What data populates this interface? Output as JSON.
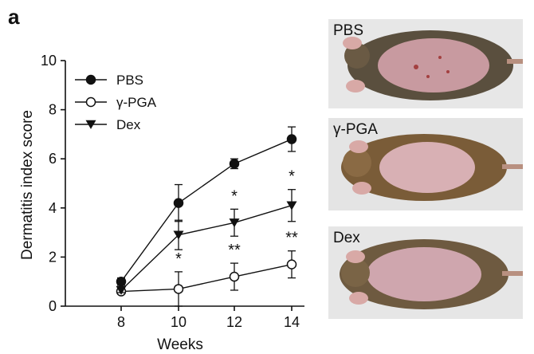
{
  "panel_label": "a",
  "chart_data": {
    "type": "line",
    "xlabel": "Weeks",
    "ylabel": "Dermatitis index score",
    "x": [
      8,
      10,
      12,
      14
    ],
    "xticks": [
      "8",
      "10",
      "12",
      "14"
    ],
    "ylim": [
      0,
      10
    ],
    "yticks": [
      "0",
      "2",
      "4",
      "6",
      "8",
      "10"
    ],
    "grid": false,
    "legend_position": "top-left",
    "series": [
      {
        "name": "PBS",
        "marker": "filled-circle",
        "values": [
          1.0,
          4.2,
          5.8,
          6.8
        ],
        "errors": [
          0.15,
          0.75,
          0.2,
          0.5
        ],
        "significance": [
          "",
          "",
          "",
          ""
        ]
      },
      {
        "name": "γ-PGA",
        "marker": "open-circle",
        "values": [
          0.6,
          0.7,
          1.2,
          1.7
        ],
        "errors": [
          0.1,
          0.7,
          0.55,
          0.55
        ],
        "significance": [
          "",
          "*",
          "**",
          "**"
        ]
      },
      {
        "name": "Dex",
        "marker": "filled-triangle-down",
        "values": [
          0.65,
          2.9,
          3.4,
          4.1
        ],
        "errors": [
          0.1,
          0.6,
          0.55,
          0.65
        ],
        "significance": [
          "",
          "",
          "*",
          "*"
        ]
      }
    ]
  },
  "photos": [
    {
      "label": "PBS",
      "icon": "mouse-photo"
    },
    {
      "label": "γ-PGA",
      "icon": "mouse-photo"
    },
    {
      "label": "Dex",
      "icon": "mouse-photo"
    }
  ]
}
